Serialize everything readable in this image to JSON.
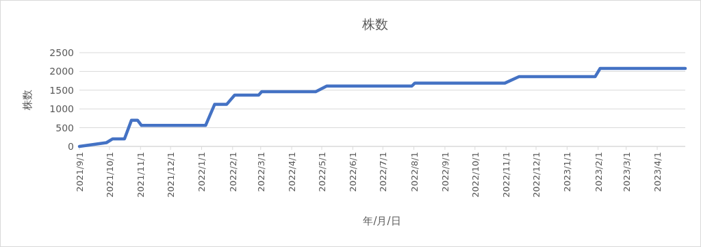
{
  "chart_data": {
    "type": "line",
    "title": "株数",
    "xlabel": "年/月/日",
    "ylabel": "株数",
    "x": [
      "2021-09-01",
      "2021-09-28",
      "2021-10-04",
      "2021-10-16",
      "2021-10-23",
      "2021-10-29",
      "2021-11-02",
      "2022-01-05",
      "2022-01-14",
      "2022-01-26",
      "2022-02-03",
      "2022-02-27",
      "2022-03-02",
      "2022-04-25",
      "2022-05-06",
      "2022-07-30",
      "2022-08-02",
      "2022-10-31",
      "2022-11-14",
      "2023-01-29",
      "2023-02-03",
      "2023-04-29"
    ],
    "series": [
      {
        "color": "#4472c4",
        "values": [
          0,
          100,
          200,
          200,
          700,
          700,
          560,
          560,
          1120,
          1120,
          1370,
          1370,
          1460,
          1460,
          1610,
          1610,
          1690,
          1690,
          1860,
          1860,
          2080,
          2080
        ]
      }
    ],
    "xlim": [
      "2021-09-01",
      "2023-04-29"
    ],
    "xticks": [
      {
        "value": "2021-09-01",
        "label": "2021/9/1"
      },
      {
        "value": "2021-10-01",
        "label": "2021/10/1"
      },
      {
        "value": "2021-11-01",
        "label": "2021/11/1"
      },
      {
        "value": "2021-12-01",
        "label": "2021/12/1"
      },
      {
        "value": "2022-01-01",
        "label": "2022/1/1"
      },
      {
        "value": "2022-02-01",
        "label": "2022/2/1"
      },
      {
        "value": "2022-03-01",
        "label": "2022/3/1"
      },
      {
        "value": "2022-04-01",
        "label": "2022/4/1"
      },
      {
        "value": "2022-05-01",
        "label": "2022/5/1"
      },
      {
        "value": "2022-06-01",
        "label": "2022/6/1"
      },
      {
        "value": "2022-07-01",
        "label": "2022/7/1"
      },
      {
        "value": "2022-08-01",
        "label": "2022/8/1"
      },
      {
        "value": "2022-09-01",
        "label": "2022/9/1"
      },
      {
        "value": "2022-10-01",
        "label": "2022/10/1"
      },
      {
        "value": "2022-11-01",
        "label": "2022/11/1"
      },
      {
        "value": "2022-12-01",
        "label": "2022/12/1"
      },
      {
        "value": "2023-01-01",
        "label": "2023/1/1"
      },
      {
        "value": "2023-02-01",
        "label": "2023/2/1"
      },
      {
        "value": "2023-03-01",
        "label": "2023/3/1"
      },
      {
        "value": "2023-04-01",
        "label": "2023/4/1"
      }
    ],
    "ylim": [
      0,
      2500
    ],
    "yticks": [
      0,
      500,
      1000,
      1500,
      2000,
      2500
    ],
    "grid": "y",
    "marker": "none",
    "line_style": "solid"
  }
}
